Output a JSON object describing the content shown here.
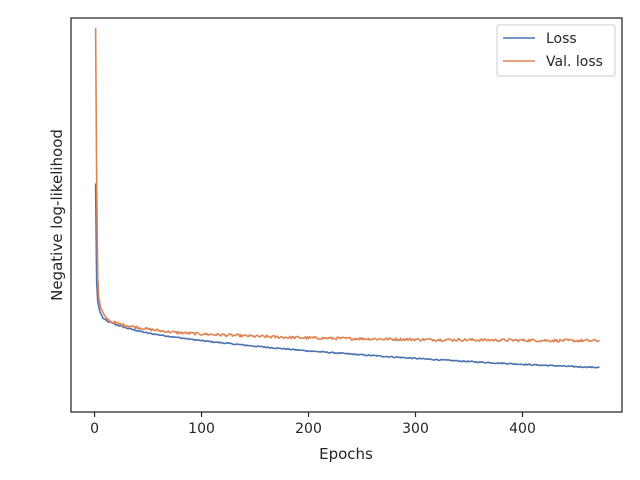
{
  "chart_data": {
    "type": "line",
    "title": "",
    "xlabel": "Epochs",
    "ylabel": "Negative log-likelihood",
    "xlim": [
      -22,
      493
    ],
    "ylim": [
      0,
      1
    ],
    "x_ticks": [
      0,
      100,
      200,
      300,
      400
    ],
    "y_tick_labels_shown": false,
    "grid": false,
    "legend": "top-right",
    "series": [
      {
        "name": "Loss",
        "color": "#4c72b0",
        "points": [
          [
            1,
            0.58
          ],
          [
            2,
            0.33
          ],
          [
            3,
            0.28
          ],
          [
            5,
            0.254
          ],
          [
            8,
            0.238
          ],
          [
            12,
            0.23
          ],
          [
            20,
            0.222
          ],
          [
            30,
            0.213
          ],
          [
            50,
            0.2
          ],
          [
            75,
            0.19
          ],
          [
            100,
            0.181
          ],
          [
            150,
            0.167
          ],
          [
            200,
            0.155
          ],
          [
            250,
            0.145
          ],
          [
            300,
            0.136
          ],
          [
            350,
            0.128
          ],
          [
            400,
            0.121
          ],
          [
            450,
            0.115
          ],
          [
            472,
            0.113
          ]
        ],
        "noise": 0.0015
      },
      {
        "name": "Val. loss",
        "color": "#dd8452",
        "points": [
          [
            1,
            0.975
          ],
          [
            2,
            0.58
          ],
          [
            3,
            0.34
          ],
          [
            4,
            0.29
          ],
          [
            6,
            0.262
          ],
          [
            10,
            0.24
          ],
          [
            15,
            0.23
          ],
          [
            25,
            0.222
          ],
          [
            50,
            0.21
          ],
          [
            75,
            0.202
          ],
          [
            100,
            0.198
          ],
          [
            150,
            0.192
          ],
          [
            200,
            0.188
          ],
          [
            250,
            0.186
          ],
          [
            300,
            0.184
          ],
          [
            350,
            0.183
          ],
          [
            400,
            0.182
          ],
          [
            450,
            0.181
          ],
          [
            472,
            0.181
          ]
        ],
        "noise": 0.0035
      }
    ]
  }
}
